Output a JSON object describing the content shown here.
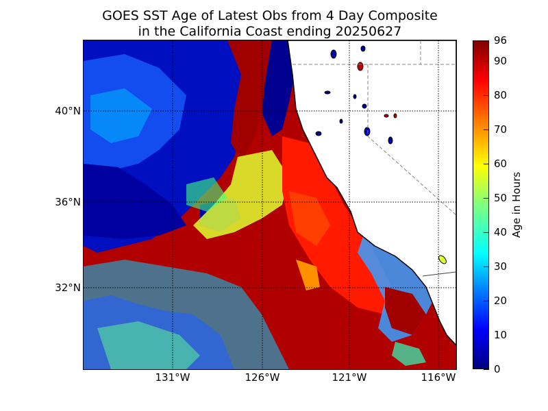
{
  "title": {
    "line1": "GOES SST Age of Latest Obs from 4 Day Composite",
    "line2": "in the California Coast ending 20250627"
  },
  "map": {
    "lat_ticks": [
      "40°N",
      "36°N",
      "32°N"
    ],
    "lon_ticks": [
      "131°W",
      "126°W",
      "121°W",
      "116°W"
    ]
  },
  "colorbar": {
    "label": "Age in Hours",
    "ticks": [
      "0",
      "10",
      "20",
      "30",
      "40",
      "50",
      "60",
      "70",
      "80",
      "90",
      "96"
    ],
    "colormap": [
      "#00007f",
      "#0000ff",
      "#0080ff",
      "#00ffff",
      "#7fff7f",
      "#ffff00",
      "#ff8000",
      "#ff0000",
      "#7f0000"
    ]
  },
  "colors": {
    "land": "#ffffff",
    "coastline": "#000000",
    "gridline": "#000000",
    "state_border": "#808080"
  }
}
